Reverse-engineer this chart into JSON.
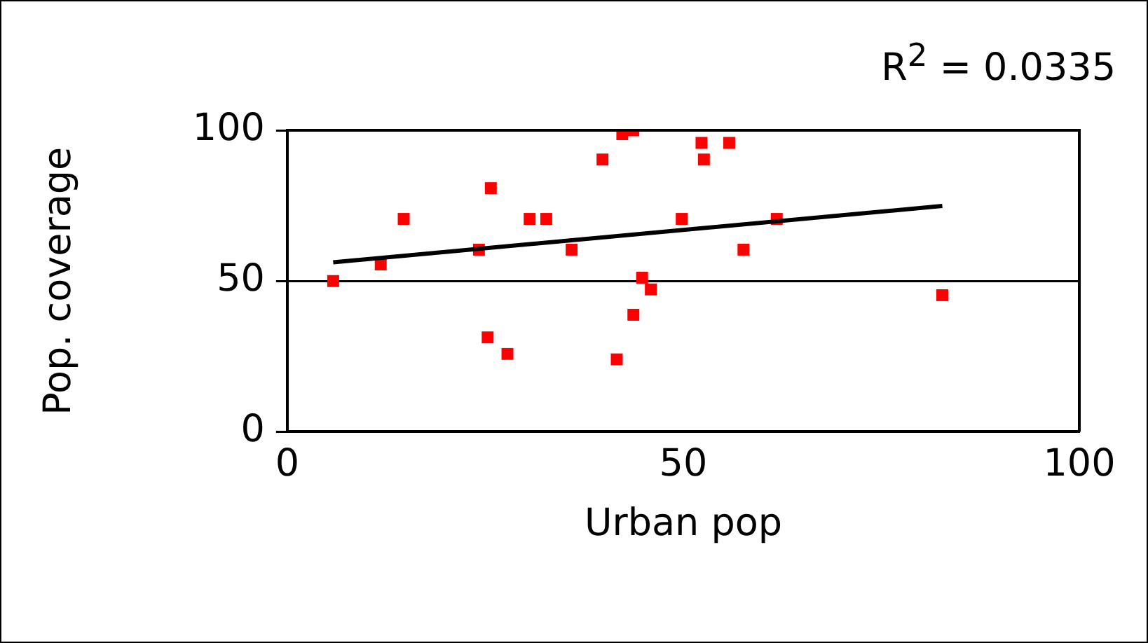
{
  "chart_data": {
    "type": "scatter",
    "xlabel": "Urban pop",
    "ylabel": "Pop. coverage",
    "xlim": [
      0,
      100
    ],
    "xticks": [
      0,
      50,
      100
    ],
    "ylim": [
      0,
      100
    ],
    "yticks": [
      0,
      50,
      100
    ],
    "grid": "y",
    "legend": false,
    "annotations": [
      "R$^{2}$ = 0.0335"
    ],
    "series": [
      {
        "marker": "square",
        "color": "#ff0000",
        "x": [
          5.8,
          11.8,
          14.7,
          24.2,
          25.7,
          25.3,
          27.8,
          30.6,
          32.7,
          35.9,
          39.8,
          41.6,
          42.3,
          43.7,
          43.7,
          44.8,
          45.9,
          49.8,
          52.3,
          52.6,
          55.8,
          57.6,
          61.8,
          82.7
        ],
        "values": [
          50,
          55.5,
          70.6,
          60.4,
          80.8,
          31.3,
          25.8,
          70.6,
          70.6,
          60.4,
          90.3,
          24,
          98.7,
          100,
          38.8,
          51.1,
          47.2,
          70.6,
          95.8,
          90.3,
          95.8,
          60.4,
          70.6,
          45.3
        ]
      },
      {
        "type": "line",
        "marker": "none",
        "color": "#000000",
        "x": [
          5.8,
          82.7
        ],
        "values": [
          56.2,
          74.9
        ]
      }
    ]
  }
}
